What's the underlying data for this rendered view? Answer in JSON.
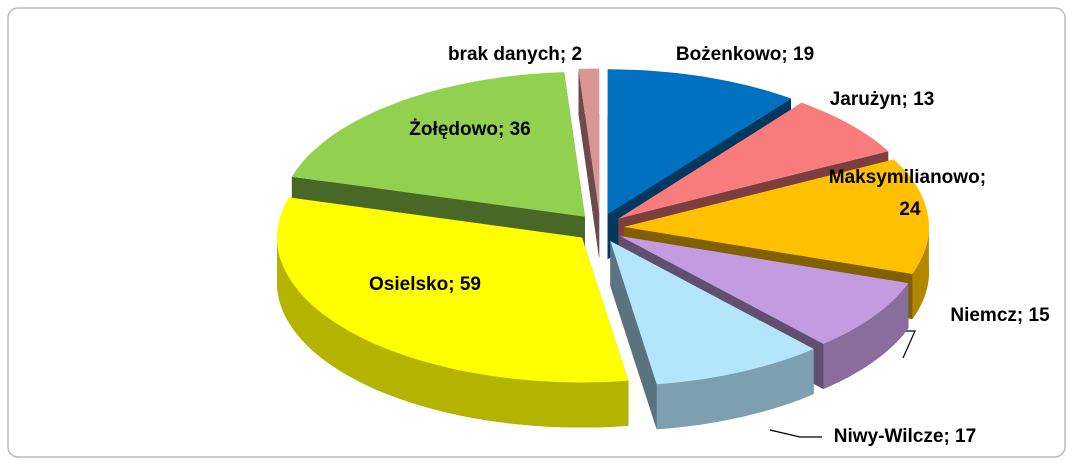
{
  "chart_data": {
    "type": "pie",
    "categories": [
      "Bożenkowo",
      "Jarużyn",
      "Maksymilianowo",
      "Niemcz",
      "Niwy-Wilcze",
      "Osielsko",
      "Żołędowo",
      "brak danych"
    ],
    "values": [
      19,
      13,
      24,
      15,
      17,
      59,
      36,
      2
    ],
    "label_separator": "; ",
    "colors": [
      "#0070c0",
      "#f87c7c",
      "#ffc000",
      "#c39be0",
      "#b3e5fb",
      "#ffff00",
      "#92d050",
      "#d99694"
    ]
  }
}
